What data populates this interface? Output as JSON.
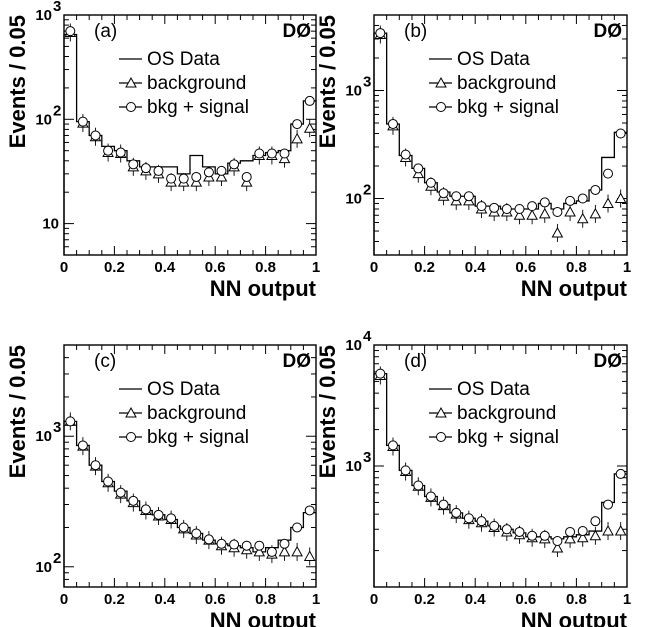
{
  "chart_data": [
    {
      "type": "line",
      "panel_label": "(a)",
      "experiment": "DØ",
      "xlabel": "NN output",
      "ylabel": "Events / 0.05",
      "yscale": "log",
      "xlim": [
        0,
        1
      ],
      "ylim": [
        5,
        1000
      ],
      "x_ticks": [
        "0",
        "0.2",
        "0.4",
        "0.6",
        "0.8",
        "1"
      ],
      "y_ticks": [
        {
          "value": 1000,
          "base": "10",
          "exp": "3"
        },
        {
          "value": 100,
          "base": "10",
          "exp": "2"
        },
        {
          "value": 10,
          "base": "10",
          "exp": ""
        }
      ],
      "legend": [
        "OS Data",
        "background",
        "bkg + signal"
      ],
      "legend_position": "top-right",
      "x": [
        0.025,
        0.075,
        0.125,
        0.175,
        0.225,
        0.275,
        0.325,
        0.375,
        0.425,
        0.475,
        0.525,
        0.575,
        0.625,
        0.675,
        0.725,
        0.775,
        0.825,
        0.875,
        0.925,
        0.975
      ],
      "series": [
        {
          "name": "OS Data",
          "style": "histogram",
          "values": [
            650,
            95,
            70,
            55,
            50,
            40,
            35,
            35,
            35,
            30,
            45,
            35,
            30,
            38,
            40,
            45,
            48,
            50,
            90,
            150
          ]
        },
        {
          "name": "background",
          "style": "triangle",
          "values": [
            680,
            92,
            68,
            48,
            47,
            35,
            32,
            30,
            25,
            25,
            25,
            28,
            28,
            35,
            25,
            45,
            45,
            42,
            65,
            82
          ]
        },
        {
          "name": "bkg + signal",
          "style": "circle",
          "values": [
            700,
            95,
            70,
            50,
            48,
            37,
            34,
            32,
            27,
            27,
            28,
            31,
            32,
            37,
            28,
            47,
            47,
            47,
            90,
            150
          ]
        }
      ]
    },
    {
      "type": "line",
      "panel_label": "(b)",
      "experiment": "DØ",
      "xlabel": "NN output",
      "ylabel": "Events / 0.05",
      "yscale": "log",
      "xlim": [
        0,
        1
      ],
      "ylim": [
        30,
        5000
      ],
      "x_ticks": [
        "0",
        "0.2",
        "0.4",
        "0.6",
        "0.8",
        "1"
      ],
      "y_ticks": [
        {
          "value": 1000,
          "base": "10",
          "exp": "3"
        },
        {
          "value": 100,
          "base": "10",
          "exp": "2"
        }
      ],
      "legend": [
        "OS Data",
        "background",
        "bkg + signal"
      ],
      "legend_position": "top-right",
      "x": [
        0.025,
        0.075,
        0.125,
        0.175,
        0.225,
        0.275,
        0.325,
        0.375,
        0.425,
        0.475,
        0.525,
        0.575,
        0.625,
        0.675,
        0.725,
        0.775,
        0.825,
        0.875,
        0.925,
        0.975
      ],
      "series": [
        {
          "name": "OS Data",
          "style": "histogram",
          "values": [
            3400,
            490,
            250,
            190,
            140,
            115,
            105,
            105,
            85,
            85,
            80,
            80,
            80,
            90,
            80,
            90,
            95,
            120,
            240,
            410
          ]
        },
        {
          "name": "background",
          "style": "triangle",
          "values": [
            3300,
            470,
            240,
            170,
            130,
            105,
            95,
            95,
            80,
            75,
            75,
            70,
            70,
            72,
            48,
            75,
            65,
            72,
            90,
            100
          ]
        },
        {
          "name": "bkg + signal",
          "style": "circle",
          "values": [
            3400,
            490,
            255,
            190,
            140,
            112,
            105,
            105,
            85,
            82,
            80,
            80,
            85,
            92,
            75,
            95,
            100,
            120,
            170,
            400
          ]
        }
      ]
    },
    {
      "type": "line",
      "panel_label": "(c)",
      "experiment": "DØ",
      "xlabel": "NN output",
      "ylabel": "Events / 0.05",
      "yscale": "log",
      "xlim": [
        0,
        1
      ],
      "ylim": [
        70,
        5000
      ],
      "x_ticks": [
        "0",
        "0.2",
        "0.4",
        "0.6",
        "0.8",
        "1"
      ],
      "y_ticks": [
        {
          "value": 1000,
          "base": "10",
          "exp": "3"
        },
        {
          "value": 100,
          "base": "10",
          "exp": "2"
        }
      ],
      "legend": [
        "OS Data",
        "background",
        "bkg + signal"
      ],
      "legend_position": "top-right",
      "x": [
        0.025,
        0.075,
        0.125,
        0.175,
        0.225,
        0.275,
        0.325,
        0.375,
        0.425,
        0.475,
        0.525,
        0.575,
        0.625,
        0.675,
        0.725,
        0.775,
        0.825,
        0.875,
        0.925,
        0.975
      ],
      "series": [
        {
          "name": "OS Data",
          "style": "histogram",
          "values": [
            1300,
            850,
            600,
            450,
            380,
            320,
            270,
            250,
            230,
            200,
            180,
            160,
            150,
            145,
            140,
            130,
            140,
            160,
            200,
            260
          ]
        },
        {
          "name": "background",
          "style": "triangle",
          "values": [
            1300,
            840,
            590,
            440,
            360,
            310,
            270,
            245,
            230,
            195,
            175,
            160,
            145,
            140,
            135,
            130,
            125,
            130,
            130,
            120
          ]
        },
        {
          "name": "bkg + signal",
          "style": "circle",
          "values": [
            1300,
            850,
            600,
            450,
            370,
            320,
            275,
            250,
            235,
            200,
            180,
            162,
            150,
            148,
            145,
            145,
            130,
            150,
            200,
            270
          ]
        }
      ]
    },
    {
      "type": "line",
      "panel_label": "(d)",
      "experiment": "DØ",
      "xlabel": "NN output",
      "ylabel": "Events / 0.05",
      "yscale": "log",
      "xlim": [
        0,
        1
      ],
      "ylim": [
        100,
        10000
      ],
      "x_ticks": [
        "0",
        "0.2",
        "0.4",
        "0.6",
        "0.8",
        "1"
      ],
      "y_ticks": [
        {
          "value": 10000,
          "base": "10",
          "exp": "4"
        },
        {
          "value": 1000,
          "base": "10",
          "exp": "3"
        }
      ],
      "legend": [
        "OS Data",
        "background",
        "bkg + signal"
      ],
      "legend_position": "top-right",
      "x": [
        0.025,
        0.075,
        0.125,
        0.175,
        0.225,
        0.275,
        0.325,
        0.375,
        0.425,
        0.475,
        0.525,
        0.575,
        0.625,
        0.675,
        0.725,
        0.775,
        0.825,
        0.875,
        0.925,
        0.975
      ],
      "series": [
        {
          "name": "OS Data",
          "style": "histogram",
          "values": [
            5800,
            1480,
            920,
            690,
            560,
            480,
            410,
            370,
            350,
            320,
            300,
            280,
            260,
            260,
            250,
            260,
            270,
            290,
            500,
            860
          ]
        },
        {
          "name": "background",
          "style": "triangle",
          "values": [
            5600,
            1450,
            900,
            680,
            550,
            470,
            400,
            360,
            340,
            310,
            285,
            270,
            255,
            250,
            210,
            250,
            255,
            265,
            290,
            290
          ]
        },
        {
          "name": "bkg + signal",
          "style": "circle",
          "values": [
            5800,
            1480,
            920,
            690,
            560,
            480,
            410,
            370,
            350,
            320,
            300,
            285,
            265,
            265,
            240,
            285,
            290,
            350,
            480,
            860
          ]
        }
      ]
    }
  ]
}
